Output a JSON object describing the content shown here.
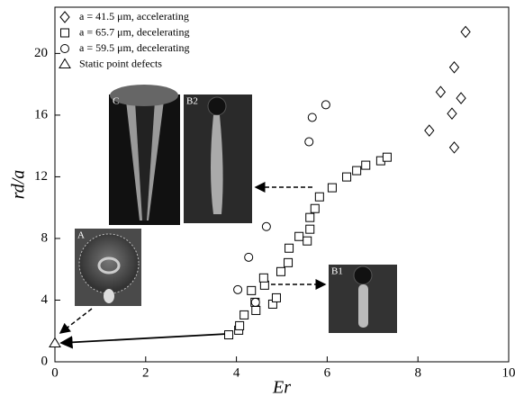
{
  "chart_data": {
    "type": "scatter",
    "xlabel": "Er",
    "ylabel": "rd/a",
    "xlim": [
      0,
      10
    ],
    "ylim": [
      0,
      23
    ],
    "xticks": [
      0,
      2,
      4,
      6,
      8,
      10
    ],
    "yticks": [
      0,
      4,
      8,
      12,
      16,
      20
    ],
    "legend": "upper left",
    "series": [
      {
        "name": "a = 41.5 μm, accelerating",
        "marker": "diamond",
        "color": "#000000",
        "x": [
          8.25,
          8.5,
          8.75,
          8.8,
          8.95,
          9.05,
          8.8
        ],
        "values": [
          15.0,
          17.5,
          16.1,
          19.1,
          17.1,
          21.4,
          13.9
        ]
      },
      {
        "name": "a = 65.7 μm, decelerating",
        "marker": "square",
        "color": "#000000",
        "x": [
          3.83,
          4.05,
          4.07,
          4.17,
          4.43,
          4.41,
          4.33,
          4.62,
          4.6,
          4.8,
          4.88,
          4.98,
          5.14,
          5.16,
          5.38,
          5.62,
          5.62,
          5.56,
          5.73,
          5.83,
          6.11,
          6.43,
          6.65,
          6.85,
          7.18,
          7.32
        ],
        "values": [
          1.75,
          2.05,
          2.34,
          3.04,
          3.33,
          3.86,
          4.62,
          4.97,
          5.44,
          3.74,
          4.15,
          5.85,
          6.43,
          7.37,
          8.13,
          8.6,
          9.36,
          7.84,
          9.94,
          10.7,
          11.29,
          11.99,
          12.4,
          12.75,
          13.04,
          13.27
        ]
      },
      {
        "name": "a = 59.5 μm, decelerating",
        "marker": "circle",
        "color": "#000000",
        "x": [
          4.03,
          4.42,
          4.27,
          4.66,
          5.6,
          5.67,
          5.97
        ],
        "values": [
          4.68,
          3.86,
          6.78,
          8.77,
          14.27,
          15.85,
          16.67
        ]
      },
      {
        "name": "Static point defects",
        "marker": "triangle",
        "color": "#000000",
        "x": [
          0
        ],
        "values": [
          1.2
        ]
      }
    ],
    "insets": [
      "C",
      "B2",
      "A",
      "B1"
    ]
  }
}
